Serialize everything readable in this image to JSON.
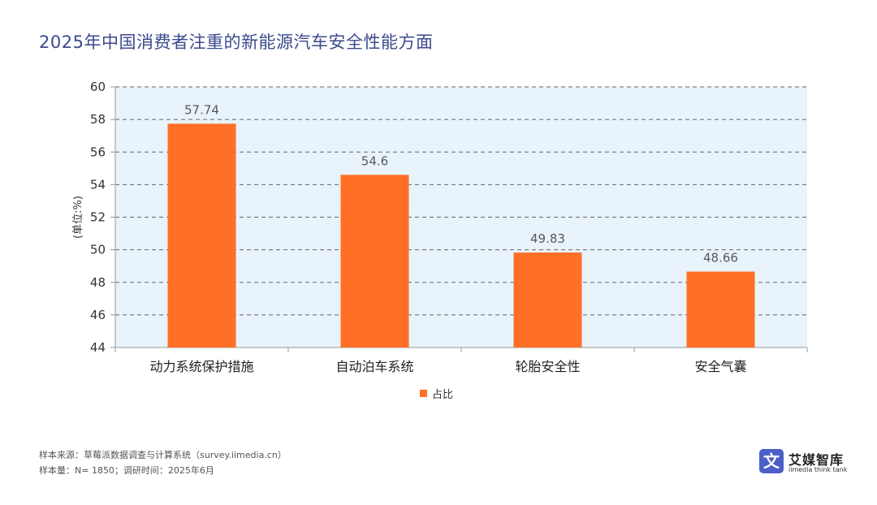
{
  "title": "2025年中国消费者注重的新能源汽车安全性能方面",
  "chart_data": {
    "type": "bar",
    "categories": [
      "动力系统保护措施",
      "自动泊车系统",
      "轮胎安全性",
      "安全气囊"
    ],
    "series": [
      {
        "name": "占比",
        "values": [
          57.74,
          54.6,
          49.83,
          48.66
        ],
        "value_labels": [
          "57.74",
          "54.6",
          "49.83",
          "48.66"
        ]
      }
    ],
    "ylabel": "(单位:%)",
    "ylim": [
      44,
      60
    ],
    "yticks": [
      44,
      46,
      48,
      50,
      52,
      54,
      56,
      58,
      60
    ],
    "grid": true,
    "legend": "bottom",
    "colors": {
      "bar": "#ff6f26",
      "plot_bg": "#e8f3fc",
      "grid": "#666666",
      "axis": "#999999",
      "label": "#595959"
    }
  },
  "footer": {
    "source": "样本来源：草莓派数据调查与计算系统（survey.iimedia.cn）",
    "sample": "样本量：N= 1850；调研时间：2025年6月"
  },
  "logo": {
    "mark": "文",
    "name": "艾媒智库",
    "sub": "iimedia think tank"
  }
}
